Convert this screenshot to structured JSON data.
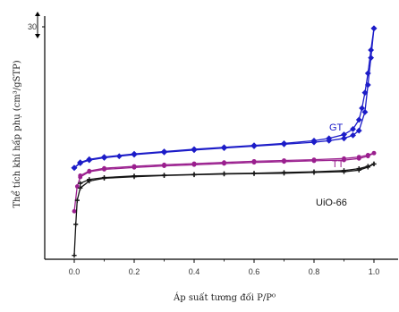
{
  "chart_data": {
    "type": "line",
    "title": "",
    "xlabel": "Áp suất tương đối P/P⁰",
    "ylabel": "Thể tích khí hấp phụ (cm³/gSTP)",
    "xlim": [
      -0.1,
      1.1
    ],
    "ylim": [
      0,
      30
    ],
    "xticks": [
      "0.0",
      "0.2",
      "0.4",
      "0.6",
      "0.8",
      "1.0"
    ],
    "xtick_values": [
      0.0,
      0.2,
      0.4,
      0.6,
      0.8,
      1.0
    ],
    "yticks": [
      "30"
    ],
    "ytick_values": [
      30
    ],
    "grid": false,
    "legend": "none",
    "series": [
      {
        "name": "GT",
        "color": "#1c1cc8",
        "marker": "diamond",
        "adsorption": {
          "x": [
            0.0,
            0.02,
            0.05,
            0.1,
            0.15,
            0.2,
            0.3,
            0.4,
            0.5,
            0.6,
            0.7,
            0.8,
            0.85,
            0.9,
            0.93,
            0.95,
            0.97,
            0.98,
            0.99,
            1.0
          ],
          "y": [
            11.8,
            12.4,
            12.8,
            13.1,
            13.3,
            13.5,
            13.8,
            14.1,
            14.35,
            14.6,
            14.85,
            15.1,
            15.3,
            15.6,
            16.0,
            16.6,
            19.0,
            22.5,
            26.0,
            29.8
          ]
        },
        "desorption": {
          "x": [
            1.0,
            0.99,
            0.98,
            0.97,
            0.96,
            0.95,
            0.93,
            0.9,
            0.85,
            0.8,
            0.7,
            0.6,
            0.5,
            0.4,
            0.3,
            0.2,
            0.1,
            0.05,
            0.02,
            0.0
          ],
          "y": [
            29.8,
            27.0,
            24.0,
            21.5,
            19.5,
            18.0,
            16.8,
            16.1,
            15.6,
            15.3,
            14.95,
            14.7,
            14.45,
            14.2,
            13.9,
            13.6,
            13.2,
            12.9,
            12.5,
            11.8
          ]
        }
      },
      {
        "name": "TT",
        "color": "#9a1f8e",
        "marker": "circle",
        "adsorption": {
          "x": [
            0.0,
            0.01,
            0.02,
            0.05,
            0.1,
            0.2,
            0.3,
            0.4,
            0.5,
            0.6,
            0.7,
            0.8,
            0.9,
            0.95,
            0.98,
            1.0
          ],
          "y": [
            6.2,
            9.4,
            10.6,
            11.3,
            11.6,
            11.85,
            12.05,
            12.2,
            12.35,
            12.5,
            12.6,
            12.7,
            12.8,
            13.0,
            13.3,
            13.7
          ]
        },
        "desorption": {
          "x": [
            1.0,
            0.98,
            0.95,
            0.9,
            0.8,
            0.7,
            0.6,
            0.5,
            0.4,
            0.3,
            0.2,
            0.1,
            0.05,
            0.02
          ],
          "y": [
            13.7,
            13.45,
            13.2,
            13.0,
            12.85,
            12.75,
            12.65,
            12.5,
            12.35,
            12.2,
            12.0,
            11.75,
            11.4,
            10.8
          ]
        }
      },
      {
        "name": "UiO-66",
        "color": "#141414",
        "marker": "plus",
        "adsorption": {
          "x": [
            0.0,
            0.005,
            0.01,
            0.02,
            0.05,
            0.1,
            0.2,
            0.3,
            0.4,
            0.5,
            0.6,
            0.7,
            0.8,
            0.9,
            0.95,
            0.98,
            1.0
          ],
          "y": [
            0.5,
            4.5,
            7.6,
            9.2,
            10.1,
            10.45,
            10.65,
            10.8,
            10.9,
            11.0,
            11.05,
            11.1,
            11.2,
            11.3,
            11.5,
            11.9,
            12.3
          ]
        },
        "desorption": {
          "x": [
            1.0,
            0.98,
            0.95,
            0.9,
            0.8,
            0.7,
            0.6,
            0.5,
            0.4,
            0.3,
            0.2,
            0.1,
            0.05,
            0.02
          ],
          "y": [
            12.3,
            12.0,
            11.7,
            11.45,
            11.3,
            11.2,
            11.1,
            11.05,
            10.95,
            10.85,
            10.75,
            10.55,
            10.3,
            9.8
          ]
        }
      }
    ]
  }
}
